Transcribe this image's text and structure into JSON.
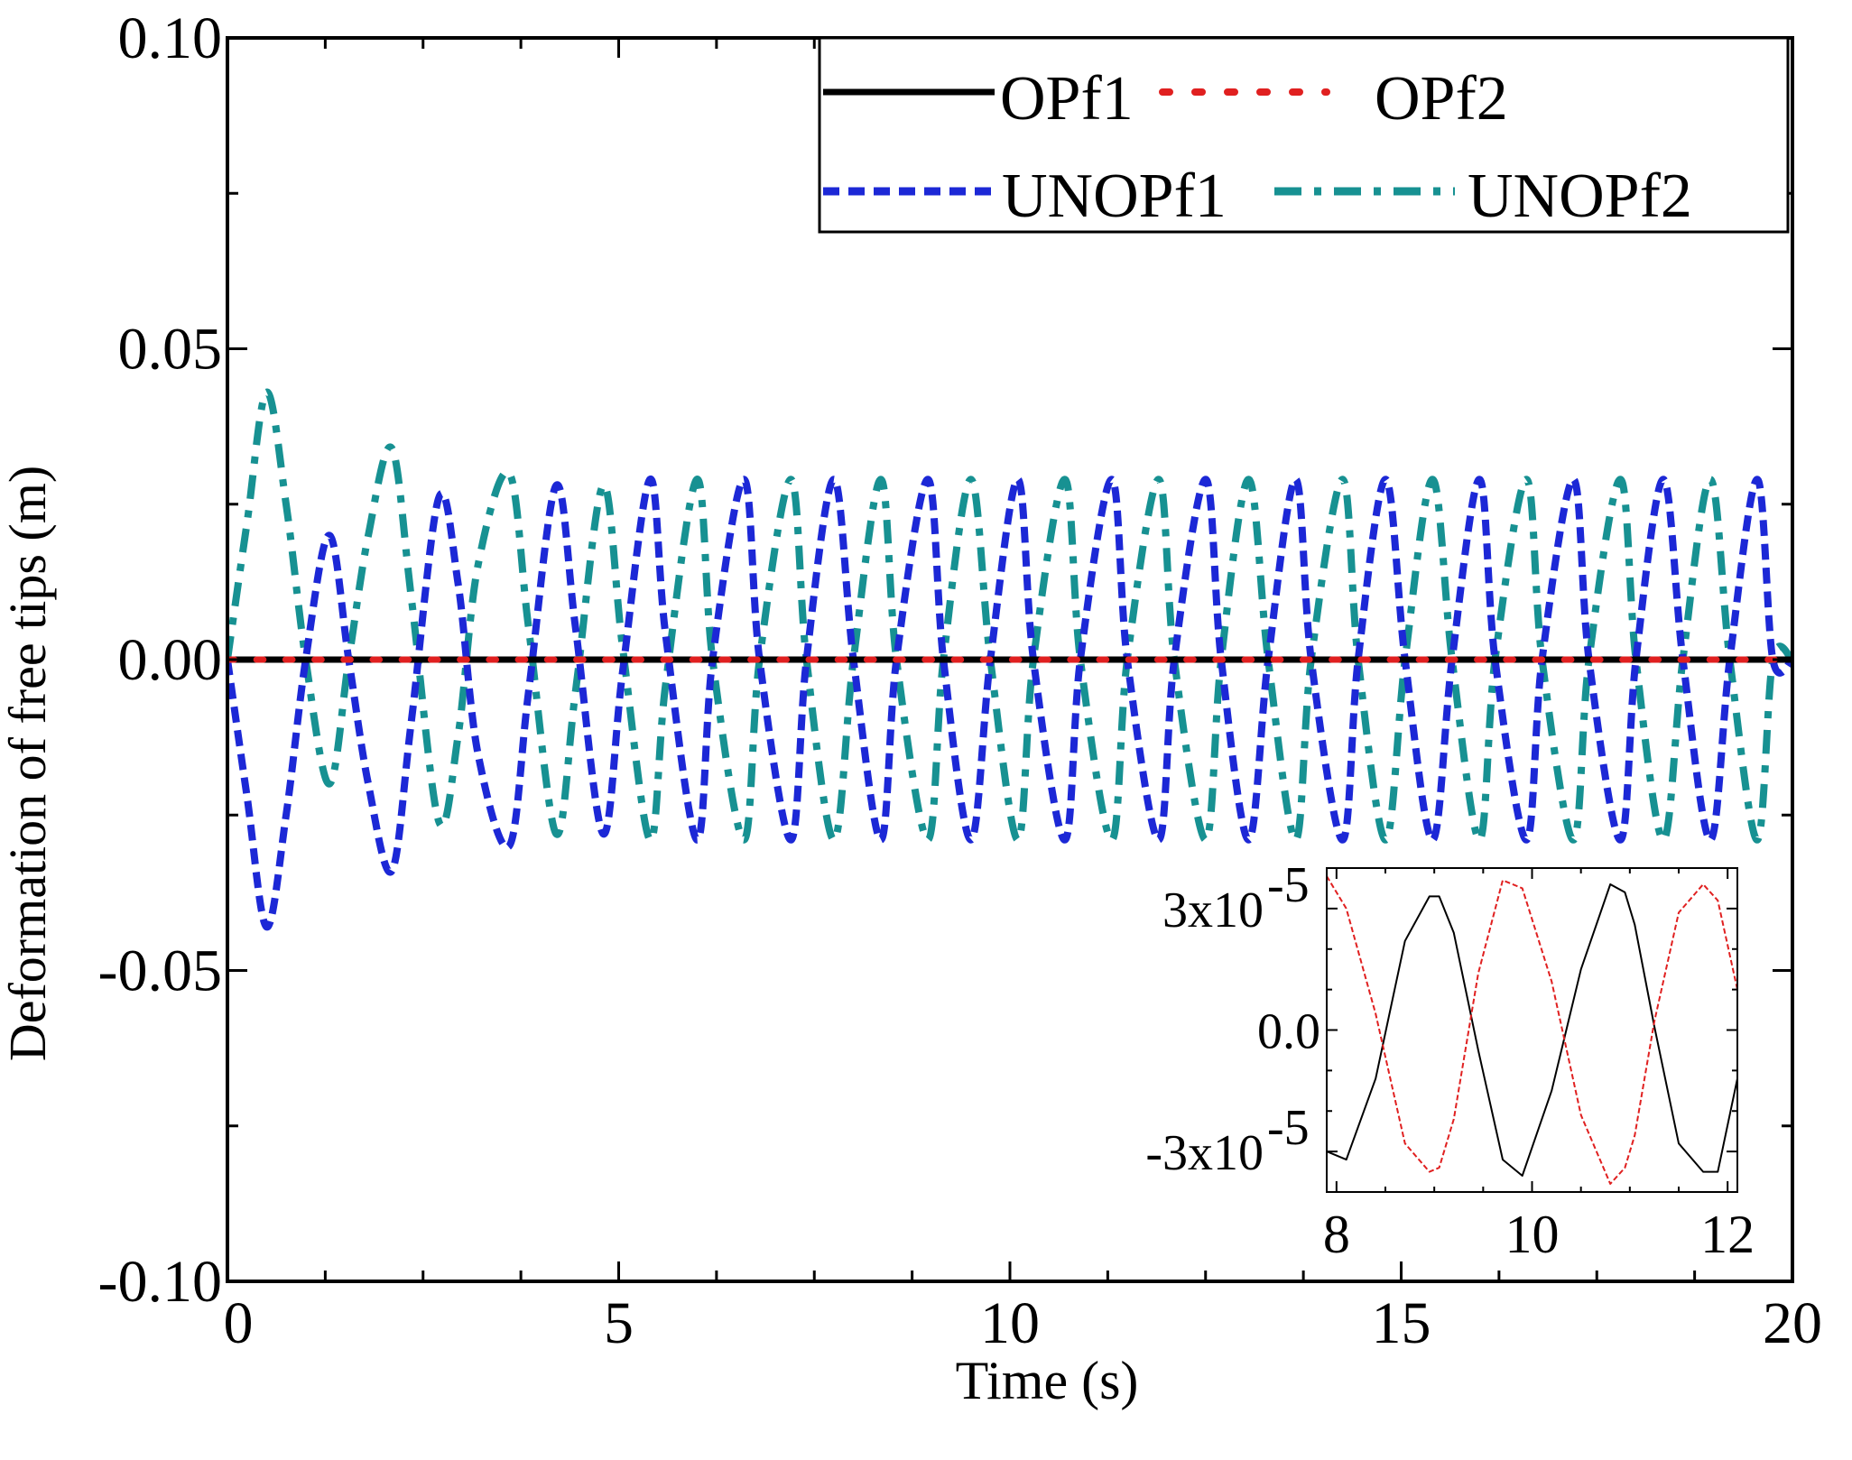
{
  "chart_data": [
    {
      "type": "line",
      "title": "",
      "xlabel": "Time (s)",
      "ylabel": "Deformation of free tips  (m)",
      "xlim": [
        0,
        20
      ],
      "ylim": [
        -0.1,
        0.1
      ],
      "x_ticks": [
        0,
        5,
        10,
        15,
        20
      ],
      "x_tick_labels": [
        "0",
        "5",
        "10",
        "15",
        "20"
      ],
      "y_ticks": [
        0.1,
        0.05,
        0.0,
        -0.05,
        -0.1
      ],
      "y_tick_labels": [
        "0.10",
        "0.05",
        "0.00",
        "-0.05",
        "-0.10"
      ],
      "legend_position": "top-right",
      "series": [
        {
          "name": "OPf1",
          "color": "#000000",
          "style": "solid",
          "description": "essentially zero at this scale",
          "x": [
            0,
            5,
            10,
            15,
            20
          ],
          "y": [
            0,
            0,
            0,
            0,
            0
          ]
        },
        {
          "name": "OPf2",
          "color": "#e02020",
          "style": "dotted",
          "description": "essentially zero at this scale",
          "x": [
            0,
            5,
            10,
            15,
            20
          ],
          "y": [
            0,
            0,
            0,
            0,
            0
          ]
        },
        {
          "name": "UNOPf1",
          "color": "#1c28d6",
          "style": "dashed",
          "x": [
            0,
            0.25,
            0.5,
            0.75,
            1.0,
            1.3,
            1.55,
            1.8,
            2.1,
            2.35,
            2.7,
            2.95,
            3.2,
            3.6,
            3.85,
            4.2,
            4.45,
            4.8,
            5.05,
            5.4,
            5.6,
            6.0,
            6.2,
            6.6,
            6.8,
            7.2,
            7.4,
            7.75,
            8.0,
            8.35,
            8.55,
            8.95,
            9.15,
            9.5,
            9.75,
            10.1,
            10.3,
            10.7,
            10.9,
            11.3,
            11.5,
            11.9,
            12.1,
            12.5,
            12.7,
            13.05,
            13.3,
            13.65,
            13.85,
            14.25,
            14.45,
            14.8,
            15.05,
            15.4,
            15.65,
            16.0,
            16.2,
            16.6,
            16.8,
            17.2,
            17.4,
            17.8,
            18.0,
            18.35,
            18.6,
            18.95,
            19.2,
            19.55,
            19.75,
            20.0
          ],
          "y": [
            0,
            -0.022,
            -0.043,
            -0.025,
            0,
            0.02,
            0,
            -0.02,
            -0.034,
            -0.01,
            0.026,
            0.012,
            -0.015,
            -0.03,
            -0.005,
            0.028,
            0.005,
            -0.028,
            -0.002,
            0.029,
            0.004,
            -0.029,
            0,
            0.029,
            0,
            -0.029,
            0,
            0.029,
            0,
            -0.029,
            0,
            0.029,
            0,
            -0.029,
            0,
            0.029,
            0,
            -0.029,
            0,
            0.029,
            0,
            -0.029,
            0,
            0.029,
            0,
            -0.029,
            0,
            0.029,
            0,
            -0.029,
            0,
            0.029,
            0,
            -0.029,
            0,
            0.029,
            0,
            -0.029,
            0,
            0.029,
            0,
            -0.029,
            0,
            0.029,
            0,
            -0.029,
            0,
            0.029,
            0,
            0
          ]
        },
        {
          "name": "UNOPf2",
          "color": "#179192",
          "style": "dash-dot",
          "x": [
            0,
            0.25,
            0.5,
            0.75,
            1.0,
            1.3,
            1.55,
            1.8,
            2.1,
            2.35,
            2.7,
            2.95,
            3.2,
            3.6,
            3.85,
            4.2,
            4.45,
            4.8,
            5.05,
            5.4,
            5.6,
            6.0,
            6.2,
            6.6,
            6.8,
            7.2,
            7.4,
            7.75,
            8.0,
            8.35,
            8.55,
            8.95,
            9.15,
            9.5,
            9.75,
            10.1,
            10.3,
            10.7,
            10.9,
            11.3,
            11.5,
            11.9,
            12.1,
            12.5,
            12.7,
            13.05,
            13.3,
            13.65,
            13.85,
            14.25,
            14.45,
            14.8,
            15.05,
            15.4,
            15.65,
            16.0,
            16.2,
            16.6,
            16.8,
            17.2,
            17.4,
            17.8,
            18.0,
            18.35,
            18.6,
            18.95,
            19.2,
            19.55,
            19.75,
            20.0
          ],
          "y": [
            0,
            0.022,
            0.043,
            0.025,
            0,
            -0.02,
            0,
            0.02,
            0.034,
            0.01,
            -0.026,
            -0.012,
            0.015,
            0.03,
            0.005,
            -0.028,
            -0.005,
            0.028,
            0.002,
            -0.029,
            -0.004,
            0.029,
            0,
            -0.029,
            0,
            0.029,
            0,
            -0.029,
            0,
            0.029,
            0,
            -0.029,
            0,
            0.029,
            0,
            -0.029,
            0,
            0.029,
            0,
            -0.029,
            0,
            0.029,
            0,
            -0.029,
            0,
            0.029,
            0,
            -0.029,
            0,
            0.029,
            0,
            -0.029,
            0,
            0.029,
            0,
            -0.029,
            0,
            0.029,
            0,
            -0.029,
            0,
            0.029,
            0,
            -0.029,
            0,
            0.029,
            0,
            -0.029,
            0,
            0
          ]
        }
      ]
    },
    {
      "type": "line",
      "title": "",
      "inset": true,
      "position": "bottom-right",
      "xlim": [
        7.9,
        12.1
      ],
      "ylim": [
        -4e-05,
        4e-05
      ],
      "x_ticks": [
        8,
        10,
        12
      ],
      "x_tick_labels": [
        "8",
        "10",
        "12"
      ],
      "y_ticks": [
        3e-05,
        0.0,
        -3e-05
      ],
      "y_tick_labels_main": [
        "3x10",
        "0.0",
        "-3x10"
      ],
      "y_tick_label_exponent": "-5",
      "series": [
        {
          "name": "OPf1",
          "color": "#000000",
          "style": "solid",
          "x": [
            7.9,
            8.1,
            8.4,
            8.7,
            8.95,
            9.05,
            9.2,
            9.45,
            9.7,
            9.9,
            10.2,
            10.5,
            10.8,
            10.95,
            11.05,
            11.25,
            11.5,
            11.75,
            11.9,
            12.1
          ],
          "y": [
            -3e-05,
            -3.2e-05,
            -1.2e-05,
            2.2e-05,
            3.3e-05,
            3.3e-05,
            2.4e-05,
            -5e-06,
            -3.2e-05,
            -3.6e-05,
            -1.5e-05,
            1.5e-05,
            3.6e-05,
            3.4e-05,
            2.6e-05,
            1e-06,
            -2.8e-05,
            -3.5e-05,
            -3.5e-05,
            -1.2e-05
          ]
        },
        {
          "name": "OPf2",
          "color": "#e02020",
          "style": "dashed",
          "x": [
            7.9,
            8.1,
            8.4,
            8.7,
            8.95,
            9.05,
            9.2,
            9.45,
            9.7,
            9.9,
            10.2,
            10.5,
            10.8,
            10.95,
            11.05,
            11.25,
            11.5,
            11.75,
            11.9,
            12.1
          ],
          "y": [
            3.8e-05,
            3e-05,
            4e-06,
            -2.8e-05,
            -3.5e-05,
            -3.4e-05,
            -2.2e-05,
            1.4e-05,
            3.7e-05,
            3.5e-05,
            1.2e-05,
            -2.1e-05,
            -3.8e-05,
            -3.4e-05,
            -2.6e-05,
            2e-06,
            2.9e-05,
            3.6e-05,
            3.2e-05,
            1e-05
          ]
        }
      ]
    }
  ]
}
